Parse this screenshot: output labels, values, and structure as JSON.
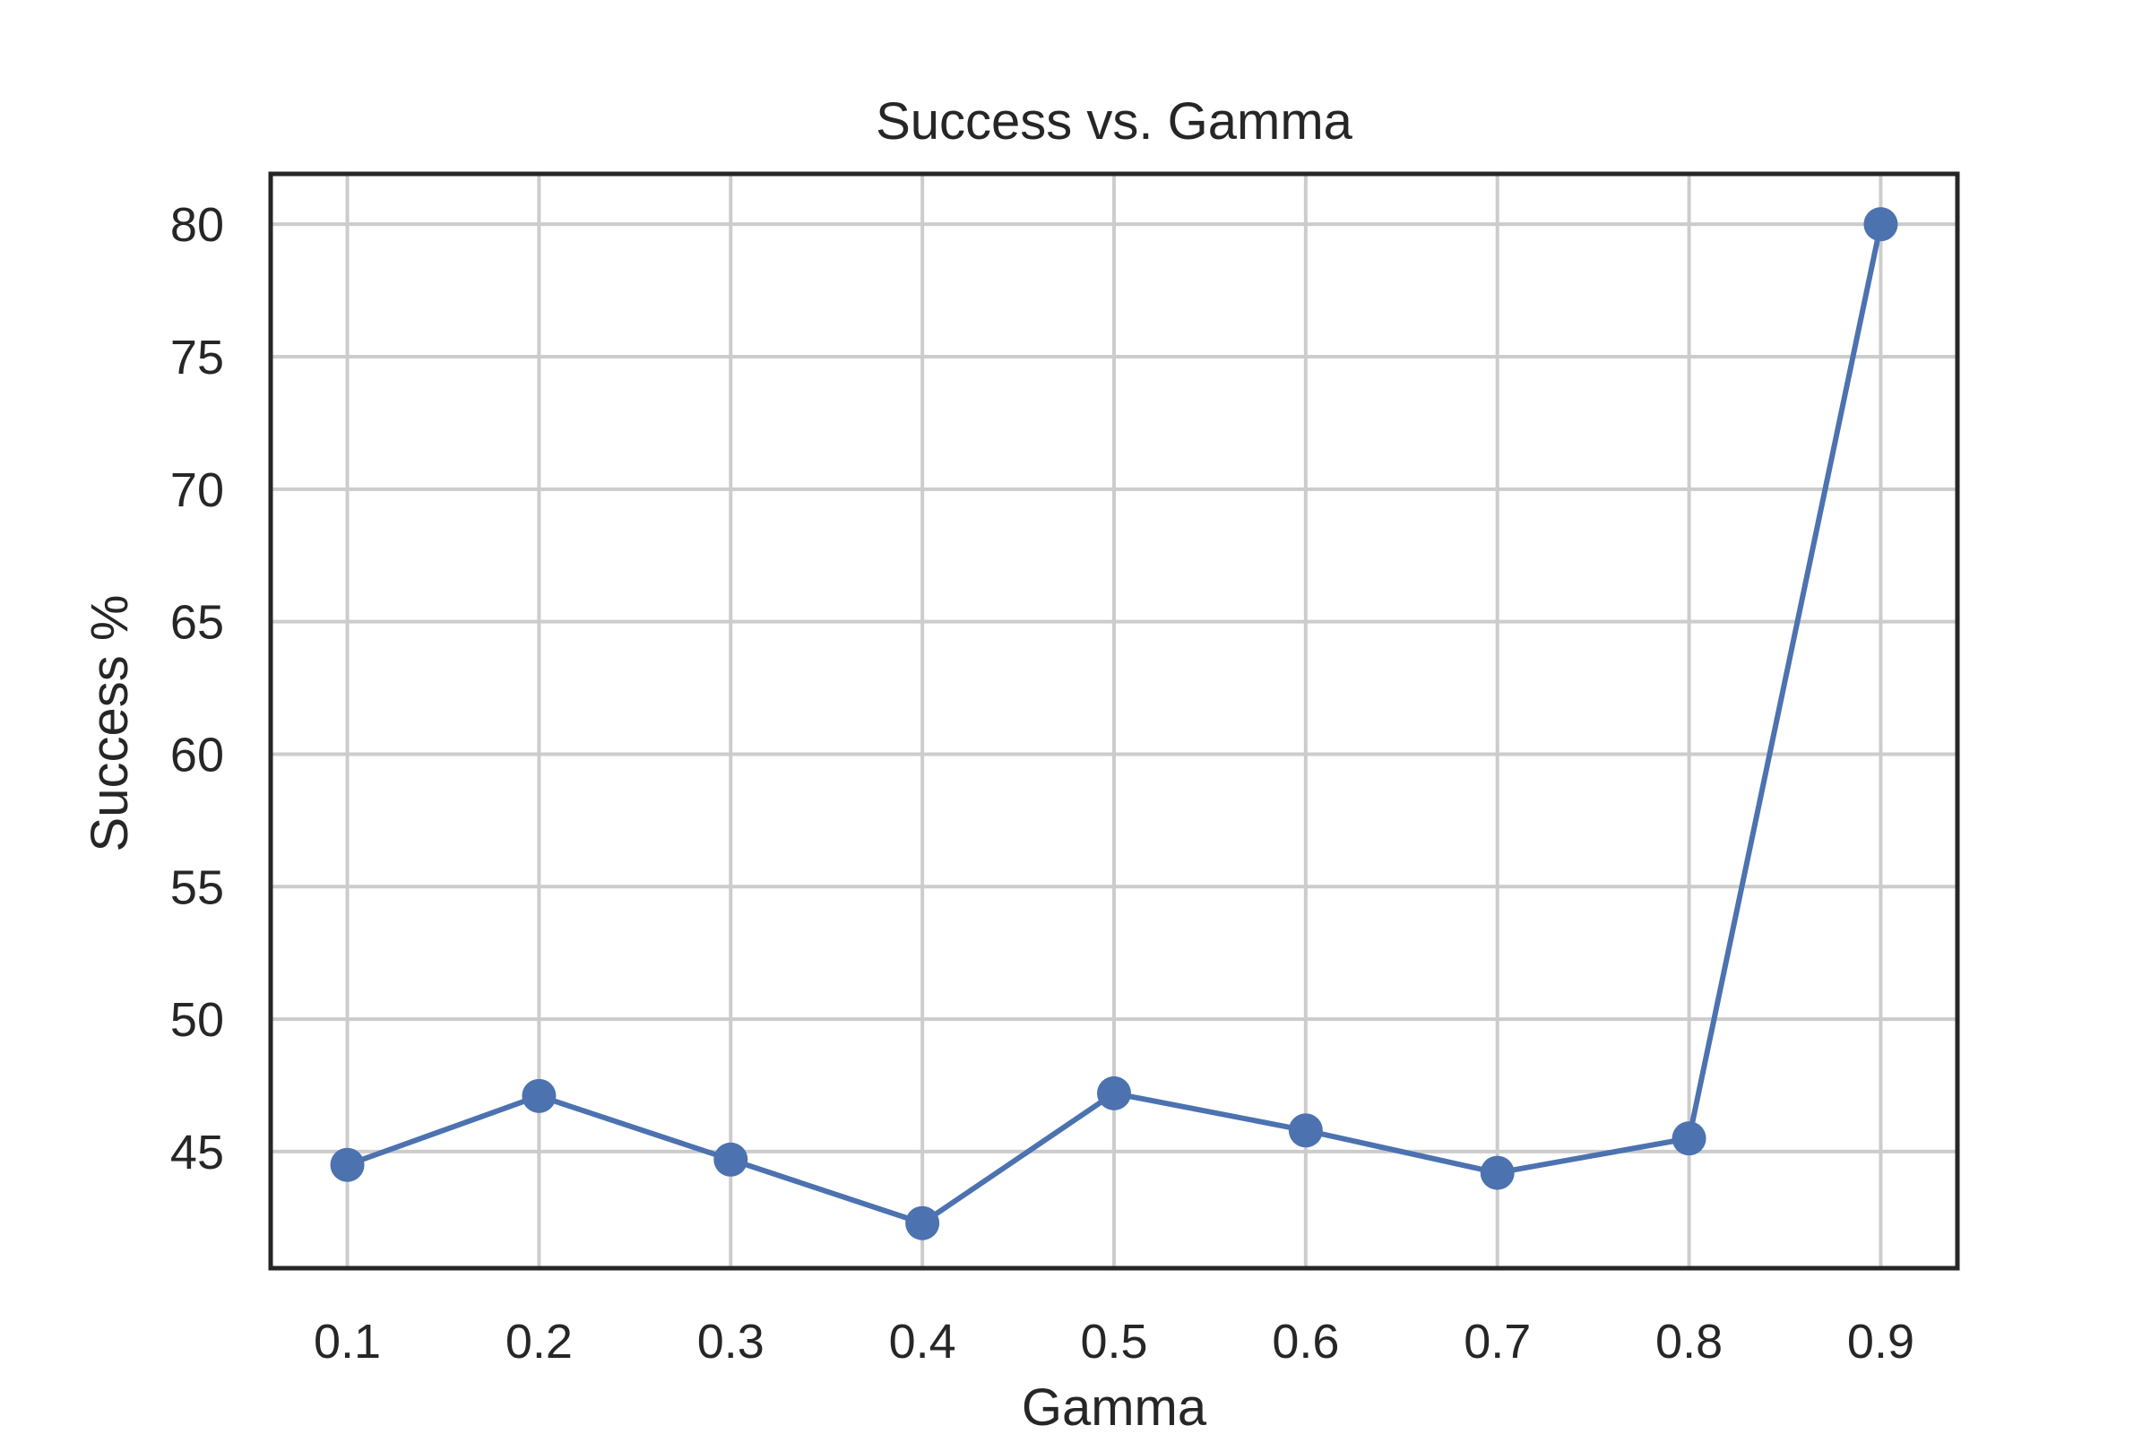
{
  "chart_data": {
    "type": "line",
    "title": "Success vs. Gamma",
    "xlabel": "Gamma",
    "ylabel": "Success %",
    "x": [
      0.1,
      0.2,
      0.3,
      0.4,
      0.5,
      0.6,
      0.7,
      0.8,
      0.9
    ],
    "x_tick_labels": [
      "0.1",
      "0.2",
      "0.3",
      "0.4",
      "0.5",
      "0.6",
      "0.7",
      "0.8",
      "0.9"
    ],
    "y": [
      44.5,
      47.1,
      44.7,
      42.3,
      47.2,
      45.8,
      44.2,
      45.5,
      80.0
    ],
    "y_ticks": [
      45,
      50,
      55,
      60,
      65,
      70,
      75,
      80
    ],
    "y_tick_labels": [
      "45",
      "50",
      "55",
      "60",
      "65",
      "70",
      "75",
      "80"
    ],
    "xlim": [
      0.06,
      0.94
    ],
    "ylim": [
      40.6,
      81.9
    ],
    "grid": true,
    "marker": "circle",
    "line_color": "#4c72b0",
    "grid_color": "#cccccc",
    "frame_color": "#262626"
  }
}
